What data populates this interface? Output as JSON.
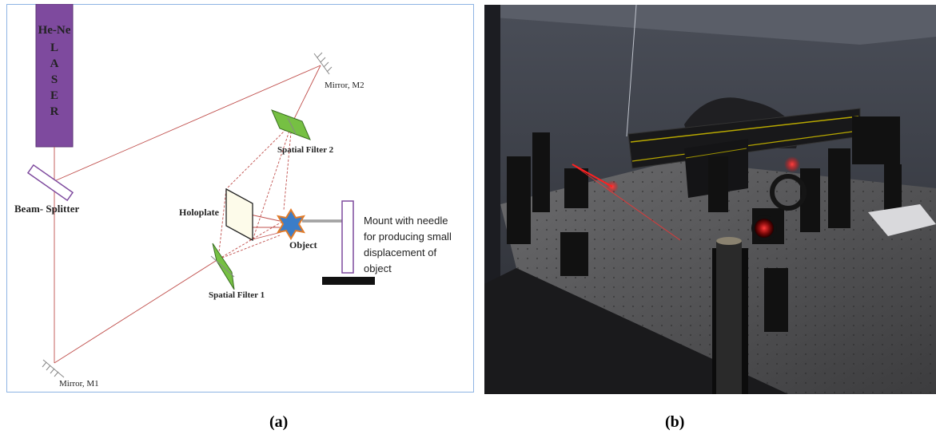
{
  "panel_a": {
    "laser_label_top": "He-Ne",
    "laser_letters": [
      "L",
      "A",
      "S",
      "E",
      "R"
    ],
    "beam_splitter": "Beam- Splitter",
    "mirror_m1": "Mirror, M1",
    "mirror_m2": "Mirror, M2",
    "spatial_filter_1": "Spatial Filter 1",
    "spatial_filter_2": "Spatial Filter 2",
    "holoplate": "Holoplate",
    "object": "Object",
    "mount_lines": [
      "Mount with needle",
      "for producing small",
      "displacement of",
      "object"
    ]
  },
  "panel_b": {
    "description": "photograph"
  },
  "captions": {
    "a": "(a)",
    "b": "(b)"
  },
  "colors": {
    "laser": "#7e4a9e",
    "beam": "#c0504d",
    "filter": "#76c043",
    "object": "#3b7dc8",
    "object_outline": "#e07b2a",
    "border": "#8eb4e3"
  }
}
